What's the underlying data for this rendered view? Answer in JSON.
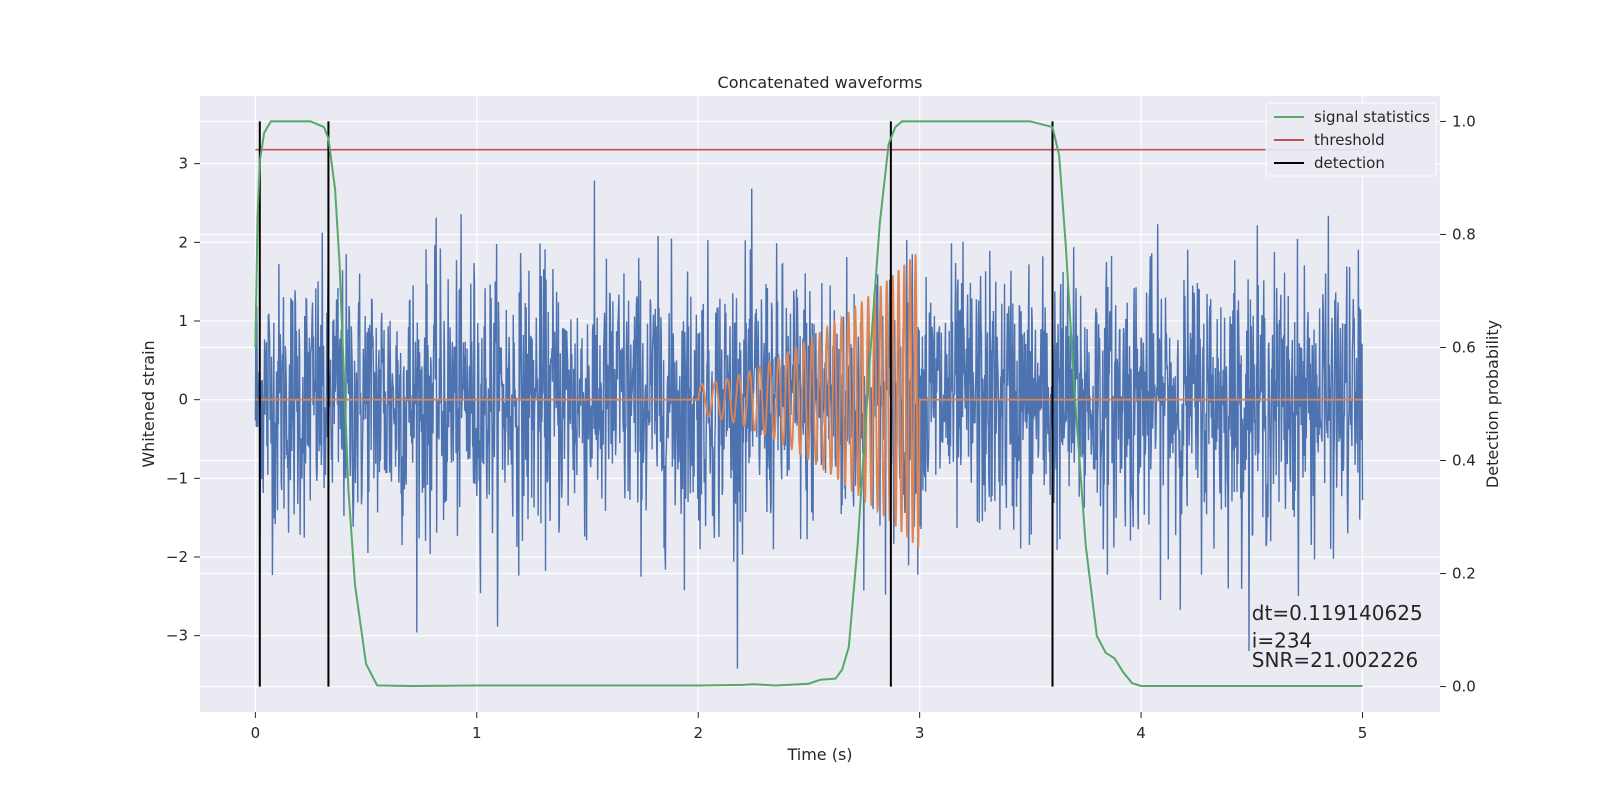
{
  "chart_data": {
    "type": "line",
    "title": "Concatenated waveforms",
    "xlabel": "Time (s)",
    "ylabel": "Whitened strain",
    "y2label": "Detection probability",
    "xlim": [
      -0.25,
      5.35
    ],
    "ylim": [
      -3.97,
      3.86
    ],
    "y2lim": [
      -0.045,
      1.045
    ],
    "xticks": [
      0,
      1,
      2,
      3,
      4,
      5
    ],
    "yticks": [
      -3,
      -2,
      -1,
      0,
      1,
      2,
      3
    ],
    "y2ticks": [
      0.0,
      0.2,
      0.4,
      0.6,
      0.8,
      1.0
    ],
    "grid": true,
    "legend_position": "top-right",
    "legend": [
      "signal statistics",
      "threshold",
      "detection"
    ],
    "colors": {
      "noise": "#4c72b0",
      "template": "#dd8452",
      "statistic": "#55a868",
      "threshold": "#c44e52",
      "detection": "#000000",
      "background": "#eaeaf2"
    },
    "series": [
      {
        "role": "noise",
        "axis": "left",
        "description_values": "whitened strain noise, sampled 0–5 s, std ≈ 0.85, peaks ≈ ±3.5"
      },
      {
        "role": "template",
        "axis": "left",
        "x_start": 2.0,
        "x_end": 3.0,
        "amplitude_start": 0.2,
        "amplitude_end": 1.9,
        "cycles": 28
      },
      {
        "name": "signal statistics",
        "axis": "right",
        "x": [
          0.0,
          0.01,
          0.02,
          0.04,
          0.07,
          0.1,
          0.15,
          0.25,
          0.31,
          0.33,
          0.36,
          0.38,
          0.4,
          0.42,
          0.45,
          0.5,
          0.55,
          0.7,
          1.0,
          1.5,
          2.0,
          2.2,
          2.25,
          2.35,
          2.5,
          2.55,
          2.62,
          2.65,
          2.68,
          2.72,
          2.77,
          2.82,
          2.86,
          2.89,
          2.92,
          3.0,
          3.2,
          3.5,
          3.6,
          3.63,
          3.66,
          3.7,
          3.75,
          3.8,
          3.84,
          3.88,
          3.92,
          3.96,
          4.0,
          4.2,
          4.6,
          5.0
        ],
        "values": [
          0.6,
          0.83,
          0.93,
          0.98,
          1.0,
          1.0,
          1.0,
          1.0,
          0.99,
          0.97,
          0.88,
          0.75,
          0.55,
          0.35,
          0.18,
          0.04,
          0.002,
          0.001,
          0.002,
          0.002,
          0.002,
          0.003,
          0.004,
          0.002,
          0.005,
          0.012,
          0.014,
          0.03,
          0.07,
          0.25,
          0.55,
          0.82,
          0.96,
          0.99,
          1.0,
          1.0,
          1.0,
          1.0,
          0.99,
          0.94,
          0.78,
          0.52,
          0.25,
          0.09,
          0.06,
          0.05,
          0.025,
          0.006,
          0.001,
          0.001,
          0.001,
          0.001
        ]
      },
      {
        "name": "threshold",
        "axis": "right",
        "x": [
          0.0,
          5.0
        ],
        "values": [
          0.95,
          0.95
        ]
      },
      {
        "name": "detection",
        "axis": "right",
        "vertical_lines_x": [
          0.02,
          0.33,
          2.87,
          3.6
        ],
        "from": 0.0,
        "to": 1.0
      }
    ],
    "annotations": [
      {
        "text": "dt=0.119140625",
        "x": 4.5,
        "y": -2.8
      },
      {
        "text": " i=234",
        "x": 4.5,
        "y": -3.15
      },
      {
        "text": "SNR=21.002226",
        "x": 4.5,
        "y": -3.4
      }
    ]
  }
}
